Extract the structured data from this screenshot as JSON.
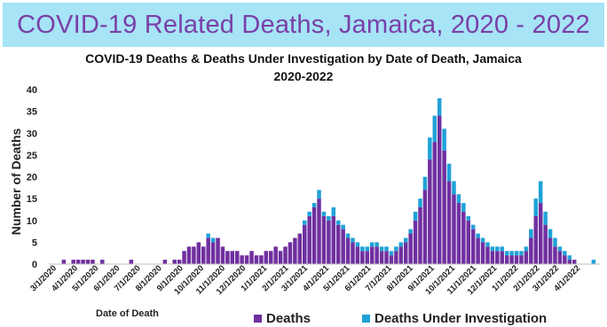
{
  "banner_title": "COVID-19 Related Deaths, Jamaica, 2020 - 2022",
  "chart_data": {
    "type": "bar",
    "stacked": true,
    "title_line1": "COVID-19 Deaths & Deaths Under Investigation by Date of Death, Jamaica",
    "title_line2": "2020-2022",
    "xlabel": "Date of Death",
    "ylabel": "Number of Deaths",
    "ylim": [
      0,
      40
    ],
    "yticks": [
      0,
      5,
      10,
      15,
      20,
      25,
      30,
      35,
      40
    ],
    "xticks": [
      "3/1/2020",
      "4/1/2020",
      "5/1/2020",
      "6/1/2020",
      "7/1/2020",
      "8/1/2020",
      "9/1/2020",
      "10/1/2020",
      "11/1/2020",
      "12/1/2020",
      "1/1/2021",
      "2/1/2021",
      "3/1/2021",
      "4/1/2021",
      "5/1/2021",
      "6/1/2021",
      "7/1/2021",
      "8/1/2021",
      "9/1/2021",
      "10/1/2021",
      "11/1/2021",
      "12/1/2021",
      "1/1/2022",
      "2/1/2022",
      "3/1/2022",
      "4/1/2022"
    ],
    "grid": false,
    "legend_position": "bottom",
    "colors": {
      "deaths": "#7030a0",
      "investigation": "#1fa2d8"
    },
    "bin": "weekly",
    "x": [
      "2020-03-01",
      "2020-03-08",
      "2020-03-15",
      "2020-03-22",
      "2020-03-29",
      "2020-04-05",
      "2020-04-12",
      "2020-04-19",
      "2020-04-26",
      "2020-05-03",
      "2020-05-10",
      "2020-05-17",
      "2020-05-24",
      "2020-05-31",
      "2020-06-07",
      "2020-06-14",
      "2020-06-21",
      "2020-06-28",
      "2020-07-05",
      "2020-07-12",
      "2020-07-19",
      "2020-07-26",
      "2020-08-02",
      "2020-08-09",
      "2020-08-16",
      "2020-08-23",
      "2020-08-30",
      "2020-09-06",
      "2020-09-13",
      "2020-09-20",
      "2020-09-27",
      "2020-10-04",
      "2020-10-11",
      "2020-10-18",
      "2020-10-25",
      "2020-11-01",
      "2020-11-08",
      "2020-11-15",
      "2020-11-22",
      "2020-11-29",
      "2020-12-06",
      "2020-12-13",
      "2020-12-20",
      "2020-12-27",
      "2021-01-03",
      "2021-01-10",
      "2021-01-17",
      "2021-01-24",
      "2021-01-31",
      "2021-02-07",
      "2021-02-14",
      "2021-02-21",
      "2021-02-28",
      "2021-03-07",
      "2021-03-14",
      "2021-03-21",
      "2021-03-28",
      "2021-04-04",
      "2021-04-11",
      "2021-04-18",
      "2021-04-25",
      "2021-05-02",
      "2021-05-09",
      "2021-05-16",
      "2021-05-23",
      "2021-05-30",
      "2021-06-06",
      "2021-06-13",
      "2021-06-20",
      "2021-06-27",
      "2021-07-04",
      "2021-07-11",
      "2021-07-18",
      "2021-07-25",
      "2021-08-01",
      "2021-08-08",
      "2021-08-15",
      "2021-08-22",
      "2021-08-29",
      "2021-09-05",
      "2021-09-12",
      "2021-09-19",
      "2021-09-26",
      "2021-10-03",
      "2021-10-10",
      "2021-10-17",
      "2021-10-24",
      "2021-10-31",
      "2021-11-07",
      "2021-11-14",
      "2021-11-21",
      "2021-11-28",
      "2021-12-05",
      "2021-12-12",
      "2021-12-19",
      "2021-12-26",
      "2022-01-02",
      "2022-01-09",
      "2022-01-16",
      "2022-01-23",
      "2022-01-30",
      "2022-02-06",
      "2022-02-13",
      "2022-02-20",
      "2022-02-27",
      "2022-03-06",
      "2022-03-13",
      "2022-03-20",
      "2022-03-27",
      "2022-04-03",
      "2022-04-10",
      "2022-04-17",
      "2022-04-24"
    ],
    "series": [
      {
        "name": "Deaths",
        "values": [
          0,
          0,
          1,
          0,
          1,
          1,
          1,
          1,
          1,
          0,
          1,
          0,
          0,
          0,
          0,
          0,
          1,
          0,
          0,
          0,
          0,
          0,
          0,
          1,
          0,
          1,
          1,
          3,
          4,
          4,
          5,
          4,
          6,
          5,
          6,
          4,
          3,
          3,
          3,
          2,
          2,
          3,
          2,
          2,
          3,
          3,
          4,
          3,
          4,
          5,
          6,
          7,
          9,
          11,
          13,
          15,
          11,
          10,
          11,
          9,
          8,
          6,
          5,
          4,
          3,
          3,
          4,
          4,
          3,
          3,
          2,
          3,
          4,
          5,
          7,
          10,
          13,
          17,
          24,
          28,
          34,
          26,
          19,
          16,
          14,
          12,
          10,
          8,
          6,
          5,
          4,
          3,
          3,
          3,
          2,
          2,
          2,
          2,
          3,
          6,
          11,
          14,
          9,
          6,
          4,
          3,
          2,
          1,
          1,
          0,
          0,
          0,
          0
        ]
      },
      {
        "name": "Deaths Under Investigation",
        "values": [
          0,
          0,
          0,
          0,
          0,
          0,
          0,
          0,
          0,
          0,
          0,
          0,
          0,
          0,
          0,
          0,
          0,
          0,
          0,
          0,
          0,
          0,
          0,
          0,
          0,
          0,
          0,
          0,
          0,
          0,
          0,
          0,
          1,
          1,
          0,
          0,
          0,
          0,
          0,
          0,
          0,
          0,
          0,
          0,
          0,
          0,
          0,
          0,
          0,
          0,
          0,
          0,
          1,
          1,
          1,
          2,
          1,
          1,
          2,
          1,
          1,
          1,
          1,
          1,
          1,
          1,
          1,
          1,
          1,
          1,
          1,
          1,
          1,
          1,
          1,
          2,
          2,
          3,
          5,
          6,
          4,
          5,
          4,
          3,
          2,
          2,
          1,
          1,
          1,
          1,
          1,
          1,
          1,
          1,
          1,
          1,
          1,
          1,
          1,
          2,
          4,
          5,
          3,
          2,
          2,
          1,
          1,
          1,
          0,
          0,
          0,
          0,
          1
        ]
      }
    ]
  }
}
